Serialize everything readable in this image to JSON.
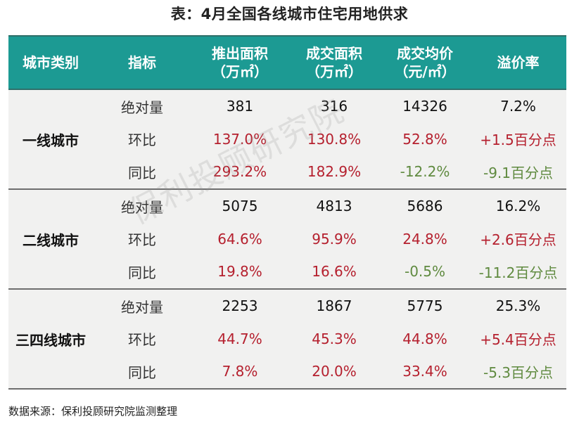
{
  "title": "表：4月全国各线城市住宅用地供求",
  "colors": {
    "header_bg": "#1c9a93",
    "positive": "#b5202e",
    "negative": "#5f8a3f",
    "row_bg": "#f1f1f0"
  },
  "header": {
    "col0": "城市类别",
    "col1": "指标",
    "col2_line1": "推出面积",
    "col2_line2": "（万㎡）",
    "col3_line1": "成交面积",
    "col3_line2": "（万㎡）",
    "col4_line1": "成交均价",
    "col4_line2": "（元/㎡）",
    "col5": "溢价率"
  },
  "groups": [
    {
      "label": "一线城市",
      "rows": [
        {
          "metric": "绝对量",
          "launched": "381",
          "sold": "316",
          "price": "14326",
          "premium": "7.2%"
        },
        {
          "metric": "环比",
          "launched": "137.0%",
          "sold": "130.8%",
          "price": "52.8%",
          "premium": "+1.5百分点"
        },
        {
          "metric": "同比",
          "launched": "293.2%",
          "sold": "182.9%",
          "price": "-12.2%",
          "premium": "-9.1百分点"
        }
      ]
    },
    {
      "label": "二线城市",
      "rows": [
        {
          "metric": "绝对量",
          "launched": "5075",
          "sold": "4813",
          "price": "5686",
          "premium": "16.2%"
        },
        {
          "metric": "环比",
          "launched": "64.6%",
          "sold": "95.9%",
          "price": "24.8%",
          "premium": "+2.6百分点"
        },
        {
          "metric": "同比",
          "launched": "19.8%",
          "sold": "16.6%",
          "price": "-0.5%",
          "premium": "-11.2百分点"
        }
      ]
    },
    {
      "label": "三四线城市",
      "rows": [
        {
          "metric": "绝对量",
          "launched": "2253",
          "sold": "1867",
          "price": "5775",
          "premium": "25.3%"
        },
        {
          "metric": "环比",
          "launched": "44.7%",
          "sold": "45.3%",
          "price": "44.8%",
          "premium": "+5.4百分点"
        },
        {
          "metric": "同比",
          "launched": "7.8%",
          "sold": "20.0%",
          "price": "33.4%",
          "premium": "-5.3百分点"
        }
      ]
    }
  ],
  "watermark": "保利投顾研究院",
  "source": "数据来源：保利投顾研究院监测整理"
}
